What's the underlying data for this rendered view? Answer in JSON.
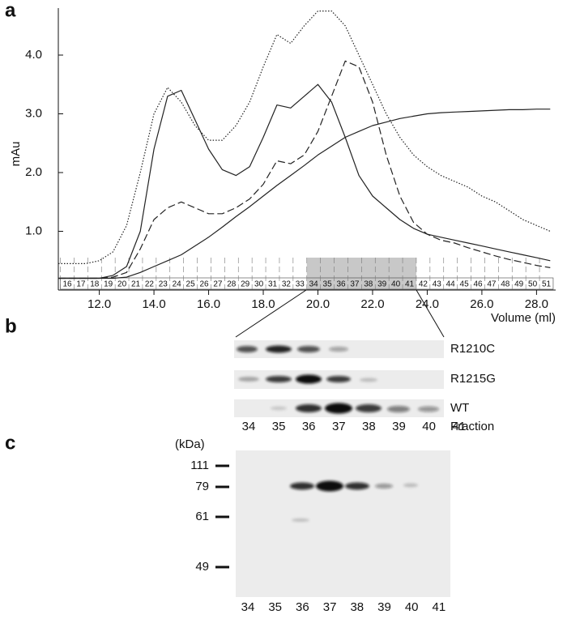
{
  "chart_data": {
    "type": "line",
    "panel_label": "a",
    "ylabel": "mAu",
    "xlabel": "Volume (ml)",
    "x": [
      10.5,
      11,
      11.5,
      12,
      12.5,
      13,
      13.5,
      14,
      14.5,
      15,
      15.5,
      16,
      16.5,
      17,
      17.5,
      18,
      18.5,
      19,
      19.5,
      20,
      20.5,
      21,
      21.5,
      22,
      22.5,
      23,
      23.5,
      24,
      24.5,
      25,
      25.5,
      26,
      26.5,
      27,
      27.5,
      28,
      28.5
    ],
    "series": [
      {
        "color": "#222222",
        "dash": "1.5,2",
        "values": [
          0.45,
          0.45,
          0.45,
          0.5,
          0.65,
          1.1,
          2.0,
          3.0,
          3.45,
          3.2,
          2.8,
          2.55,
          2.55,
          2.8,
          3.2,
          3.8,
          4.35,
          4.2,
          4.5,
          4.75,
          4.75,
          4.5,
          4.0,
          3.5,
          3.0,
          2.6,
          2.3,
          2.1,
          1.95,
          1.85,
          1.75,
          1.6,
          1.5,
          1.35,
          1.2,
          1.1,
          1.0
        ]
      },
      {
        "color": "#222222",
        "dash": "none",
        "values": [
          0.2,
          0.2,
          0.2,
          0.2,
          0.25,
          0.4,
          1.0,
          2.4,
          3.3,
          3.4,
          2.9,
          2.4,
          2.05,
          1.95,
          2.1,
          2.6,
          3.15,
          3.1,
          3.3,
          3.5,
          3.2,
          2.6,
          1.95,
          1.6,
          1.4,
          1.2,
          1.05,
          0.95,
          0.9,
          0.85,
          0.8,
          0.75,
          0.7,
          0.65,
          0.6,
          0.55,
          0.5
        ]
      },
      {
        "color": "#222222",
        "dash": "9,4",
        "values": [
          0.2,
          0.2,
          0.2,
          0.2,
          0.22,
          0.3,
          0.7,
          1.2,
          1.4,
          1.5,
          1.4,
          1.3,
          1.3,
          1.4,
          1.55,
          1.8,
          2.2,
          2.15,
          2.3,
          2.7,
          3.3,
          3.9,
          3.8,
          3.2,
          2.3,
          1.6,
          1.15,
          0.95,
          0.85,
          0.8,
          0.72,
          0.65,
          0.58,
          0.52,
          0.47,
          0.42,
          0.38
        ]
      },
      {
        "color": "#222222",
        "dash": "none",
        "values": [
          0.2,
          0.2,
          0.2,
          0.2,
          0.2,
          0.22,
          0.3,
          0.4,
          0.5,
          0.6,
          0.75,
          0.9,
          1.07,
          1.25,
          1.42,
          1.6,
          1.78,
          1.95,
          2.12,
          2.3,
          2.45,
          2.6,
          2.7,
          2.8,
          2.86,
          2.92,
          2.96,
          3.0,
          3.02,
          3.03,
          3.04,
          3.05,
          3.06,
          3.07,
          3.07,
          3.08,
          3.08
        ]
      }
    ],
    "xlim": [
      10.5,
      28.7
    ],
    "ylim": [
      0,
      4.8
    ],
    "xticks": [
      {
        "value": 12,
        "label": "12.0"
      },
      {
        "value": 14,
        "label": "14.0"
      },
      {
        "value": 16,
        "label": "16.0"
      },
      {
        "value": 18,
        "label": "18.0"
      },
      {
        "value": 20,
        "label": "20.0"
      },
      {
        "value": 22,
        "label": "22.0"
      },
      {
        "value": 24,
        "label": "24.0"
      },
      {
        "value": 26,
        "label": "26.0"
      },
      {
        "value": 28,
        "label": "28.0"
      }
    ],
    "yticks": [
      {
        "value": 1,
        "label": "1.0"
      },
      {
        "value": 2,
        "label": "2.0"
      },
      {
        "value": 3,
        "label": "3.0"
      },
      {
        "value": 4,
        "label": "4.0"
      }
    ],
    "fractions": [
      16,
      17,
      18,
      19,
      20,
      21,
      22,
      23,
      24,
      25,
      26,
      27,
      28,
      29,
      30,
      31,
      32,
      33,
      34,
      35,
      36,
      37,
      38,
      39,
      40,
      41,
      42,
      43,
      44,
      45,
      46,
      47,
      48,
      49,
      50,
      51
    ],
    "highlight": {
      "from": 34,
      "to": 41
    }
  },
  "panel_b": {
    "label": "b",
    "rows": [
      "R1210C",
      "R1215G",
      "WT"
    ],
    "lanes": [
      34,
      35,
      36,
      37,
      38,
      39,
      40,
      41
    ],
    "lanes_title": "Fraction"
  },
  "panel_c": {
    "label": "c",
    "unit": "(kDa)",
    "markers": [
      111,
      79,
      61,
      49
    ],
    "lanes": [
      34,
      35,
      36,
      37,
      38,
      39,
      40,
      41
    ]
  }
}
